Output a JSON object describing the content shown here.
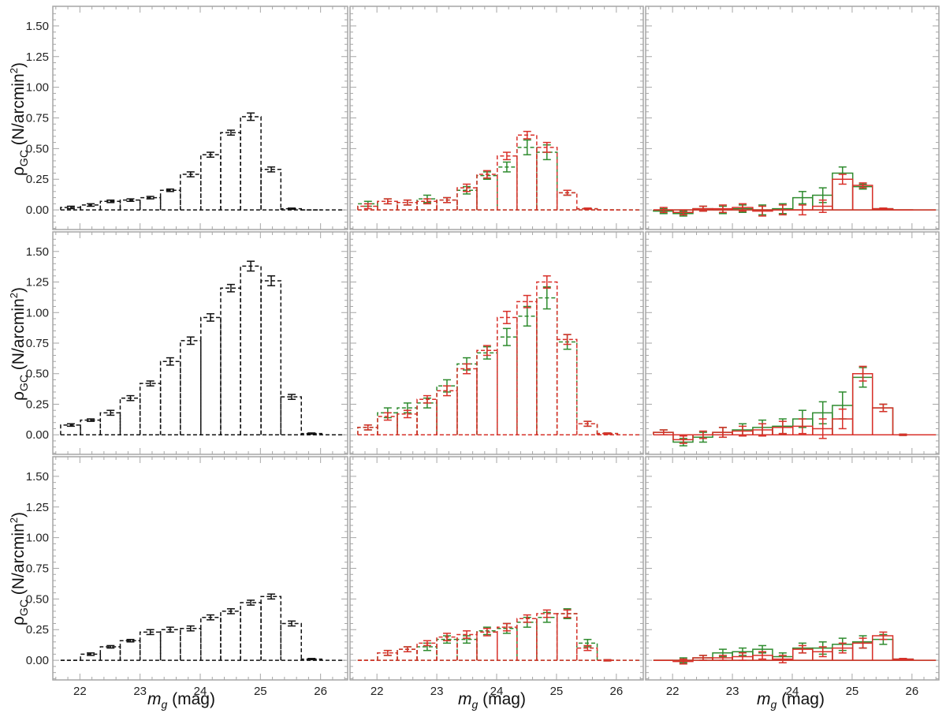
{
  "figure": {
    "ylabel_symbol": "ρ",
    "ylabel_sub": "GC",
    "ylabel_unit_pre": " (N/arcmin",
    "ylabel_unit_sup": "2",
    "ylabel_unit_post": ")",
    "xlabel_symbol": "m",
    "xlabel_sub": "g",
    "xlabel_unit": " (mag)"
  },
  "colors": {
    "black": "#111111",
    "green": "#2e8b2e",
    "red": "#d9302a",
    "frame": "#a6a6a6"
  },
  "chart_data": {
    "type": "bar",
    "layout": "3x3 grid of step histograms with error bars",
    "xlim": [
      21.55,
      26.45
    ],
    "ylim": [
      -0.16,
      1.66
    ],
    "x_ticks": [
      22,
      23,
      24,
      25,
      26
    ],
    "y_ticks": [
      0.0,
      0.25,
      0.5,
      0.75,
      1.0,
      1.25,
      1.5
    ],
    "y_tick_labels": [
      "0.00",
      "0.25",
      "0.50",
      "0.75",
      "1.00",
      "1.25",
      "1.50"
    ],
    "bin_centers": [
      21.85,
      22.18,
      22.51,
      22.84,
      23.17,
      23.5,
      23.84,
      24.17,
      24.51,
      24.84,
      25.18,
      25.52,
      25.85
    ],
    "bin_edges": [
      21.68,
      22.01,
      22.34,
      22.67,
      23.0,
      23.34,
      23.67,
      24.01,
      24.34,
      24.67,
      25.01,
      25.34,
      25.68,
      26.02
    ],
    "extend_to": 26.4,
    "panels": [
      {
        "row": 0,
        "col": 0,
        "series": [
          {
            "color": "black",
            "dashed": true,
            "values": [
              0.02,
              0.04,
              0.07,
              0.08,
              0.1,
              0.16,
              0.29,
              0.45,
              0.63,
              0.76,
              0.33,
              0.01,
              0.0
            ],
            "errors": [
              0.01,
              0.01,
              0.01,
              0.01,
              0.01,
              0.01,
              0.02,
              0.02,
              0.02,
              0.03,
              0.02,
              0.005,
              0.0
            ]
          }
        ]
      },
      {
        "row": 0,
        "col": 1,
        "series": [
          {
            "color": "green",
            "dashed": true,
            "values": [
              0.05,
              0.07,
              0.06,
              0.09,
              0.08,
              0.16,
              0.28,
              0.35,
              0.51,
              0.47,
              0.14,
              0.01,
              0.0
            ],
            "errors": [
              0.02,
              0.02,
              0.02,
              0.03,
              0.02,
              0.03,
              0.03,
              0.04,
              0.06,
              0.06,
              0.02,
              0.005,
              0.0
            ]
          },
          {
            "color": "red",
            "dashed": true,
            "values": [
              0.03,
              0.07,
              0.06,
              0.07,
              0.08,
              0.18,
              0.29,
              0.44,
              0.61,
              0.51,
              0.14,
              0.01,
              0.0
            ],
            "errors": [
              0.02,
              0.02,
              0.02,
              0.02,
              0.02,
              0.03,
              0.03,
              0.03,
              0.03,
              0.04,
              0.02,
              0.005,
              0.0
            ]
          }
        ]
      },
      {
        "row": 0,
        "col": 2,
        "series": [
          {
            "color": "green",
            "dashed": false,
            "values": [
              -0.01,
              -0.03,
              0.01,
              0.0,
              0.01,
              0.0,
              0.01,
              0.1,
              0.12,
              0.3,
              0.19,
              0.01,
              0.0
            ],
            "errors": [
              0.02,
              0.02,
              0.02,
              0.03,
              0.03,
              0.04,
              0.04,
              0.05,
              0.06,
              0.05,
              0.02,
              0.005,
              0.0
            ]
          },
          {
            "color": "red",
            "dashed": false,
            "values": [
              0.0,
              -0.02,
              0.01,
              0.01,
              0.02,
              -0.01,
              0.0,
              0.0,
              0.03,
              0.25,
              0.2,
              0.01,
              0.0
            ],
            "errors": [
              0.02,
              0.02,
              0.02,
              0.03,
              0.03,
              0.04,
              0.04,
              0.04,
              0.05,
              0.04,
              0.02,
              0.005,
              0.0
            ]
          }
        ]
      },
      {
        "row": 1,
        "col": 0,
        "series": [
          {
            "color": "black",
            "dashed": true,
            "values": [
              0.08,
              0.12,
              0.18,
              0.3,
              0.42,
              0.6,
              0.77,
              0.96,
              1.2,
              1.38,
              1.26,
              0.31,
              0.01
            ],
            "errors": [
              0.01,
              0.01,
              0.02,
              0.02,
              0.02,
              0.03,
              0.03,
              0.03,
              0.03,
              0.04,
              0.04,
              0.02,
              0.005
            ]
          }
        ]
      },
      {
        "row": 1,
        "col": 1,
        "series": [
          {
            "color": "green",
            "dashed": true,
            "values": [
              0.06,
              0.18,
              0.22,
              0.26,
              0.4,
              0.58,
              0.67,
              0.8,
              0.97,
              1.12,
              0.76,
              0.09,
              0.01
            ],
            "errors": [
              0.02,
              0.04,
              0.04,
              0.04,
              0.05,
              0.05,
              0.05,
              0.07,
              0.08,
              0.09,
              0.06,
              0.02,
              0.005
            ]
          },
          {
            "color": "red",
            "dashed": true,
            "values": [
              0.06,
              0.15,
              0.17,
              0.29,
              0.36,
              0.54,
              0.69,
              0.96,
              1.09,
              1.25,
              0.78,
              0.09,
              0.01
            ],
            "errors": [
              0.02,
              0.03,
              0.03,
              0.03,
              0.04,
              0.04,
              0.04,
              0.05,
              0.05,
              0.05,
              0.04,
              0.02,
              0.005
            ]
          }
        ]
      },
      {
        "row": 1,
        "col": 2,
        "series": [
          {
            "color": "green",
            "dashed": false,
            "values": [
              0.02,
              -0.06,
              -0.02,
              0.02,
              0.04,
              0.06,
              0.07,
              0.13,
              0.18,
              0.24,
              0.47,
              0.22,
              0.0
            ],
            "errors": [
              0.02,
              0.03,
              0.04,
              0.04,
              0.05,
              0.06,
              0.06,
              0.07,
              0.09,
              0.11,
              0.08,
              0.03,
              0.005
            ]
          },
          {
            "color": "red",
            "dashed": false,
            "values": [
              0.02,
              -0.04,
              0.0,
              0.02,
              0.03,
              0.04,
              0.06,
              0.07,
              0.05,
              0.13,
              0.5,
              0.22,
              0.0
            ],
            "errors": [
              0.02,
              0.03,
              0.03,
              0.04,
              0.04,
              0.05,
              0.05,
              0.06,
              0.08,
              0.08,
              0.06,
              0.03,
              0.005
            ]
          }
        ]
      },
      {
        "row": 2,
        "col": 0,
        "series": [
          {
            "color": "black",
            "dashed": true,
            "values": [
              0.0,
              0.05,
              0.11,
              0.16,
              0.23,
              0.25,
              0.26,
              0.35,
              0.4,
              0.47,
              0.52,
              0.3,
              0.01
            ],
            "errors": [
              0.0,
              0.01,
              0.01,
              0.01,
              0.02,
              0.02,
              0.02,
              0.02,
              0.02,
              0.02,
              0.02,
              0.02,
              0.005
            ]
          }
        ]
      },
      {
        "row": 2,
        "col": 1,
        "series": [
          {
            "color": "green",
            "dashed": true,
            "values": [
              0.0,
              0.06,
              0.09,
              0.11,
              0.17,
              0.17,
              0.24,
              0.26,
              0.31,
              0.35,
              0.38,
              0.14,
              0.0
            ],
            "errors": [
              0.0,
              0.02,
              0.02,
              0.03,
              0.03,
              0.03,
              0.03,
              0.04,
              0.04,
              0.04,
              0.04,
              0.03,
              0.005
            ]
          },
          {
            "color": "red",
            "dashed": true,
            "values": [
              0.0,
              0.06,
              0.09,
              0.14,
              0.19,
              0.21,
              0.23,
              0.27,
              0.34,
              0.38,
              0.38,
              0.1,
              0.0
            ],
            "errors": [
              0.0,
              0.02,
              0.02,
              0.02,
              0.03,
              0.03,
              0.03,
              0.03,
              0.03,
              0.03,
              0.03,
              0.02,
              0.005
            ]
          }
        ]
      },
      {
        "row": 2,
        "col": 2,
        "series": [
          {
            "color": "green",
            "dashed": false,
            "values": [
              0.0,
              0.0,
              0.02,
              0.06,
              0.07,
              0.09,
              0.03,
              0.1,
              0.1,
              0.13,
              0.15,
              0.17,
              0.01
            ],
            "errors": [
              0.0,
              0.02,
              0.02,
              0.03,
              0.03,
              0.03,
              0.03,
              0.04,
              0.05,
              0.05,
              0.05,
              0.04,
              0.005
            ]
          },
          {
            "color": "red",
            "dashed": false,
            "values": [
              0.0,
              -0.01,
              0.02,
              0.02,
              0.03,
              0.04,
              0.01,
              0.09,
              0.07,
              0.1,
              0.14,
              0.2,
              0.01
            ],
            "errors": [
              0.0,
              0.02,
              0.02,
              0.02,
              0.03,
              0.03,
              0.03,
              0.03,
              0.04,
              0.04,
              0.04,
              0.03,
              0.005
            ]
          }
        ]
      }
    ]
  }
}
